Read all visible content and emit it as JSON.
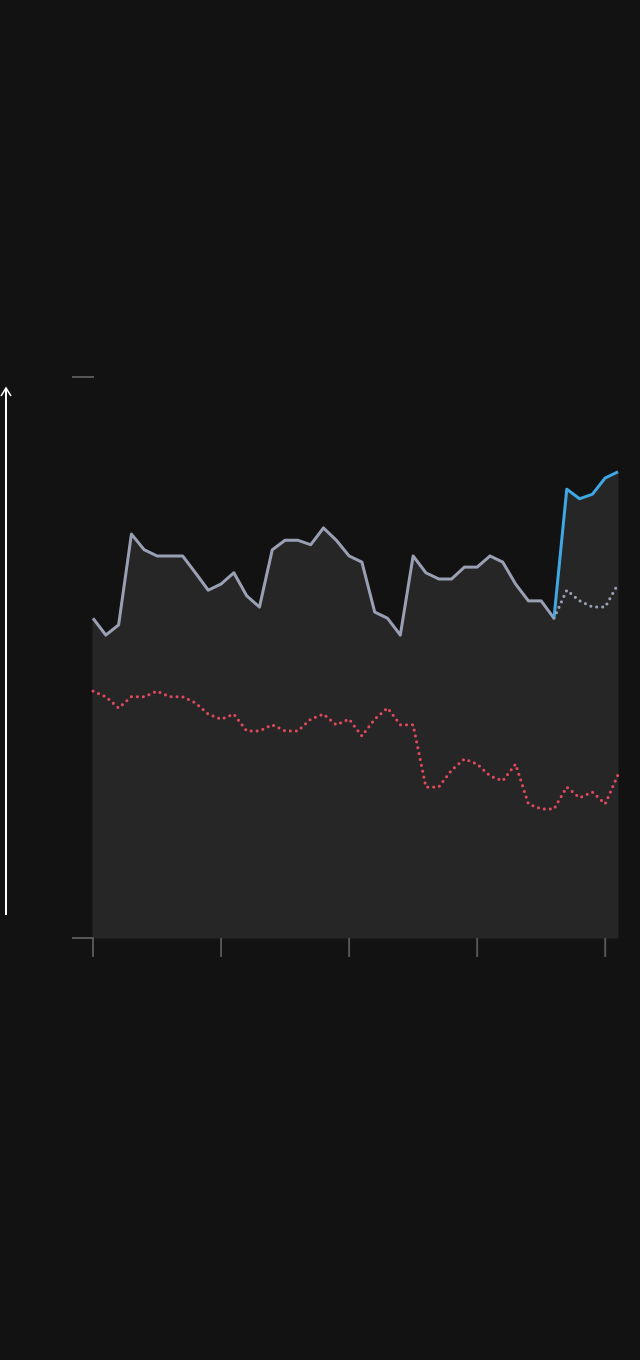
{
  "chart_data": {
    "type": "line",
    "x": [
      0,
      1,
      2,
      3,
      4,
      5,
      6,
      7,
      8,
      9,
      10,
      11,
      12,
      13,
      14,
      15,
      16,
      17,
      18,
      19,
      20,
      21,
      22,
      23,
      24,
      25,
      26,
      27,
      28,
      29,
      30,
      31,
      32,
      33,
      34,
      35,
      36,
      37,
      38,
      39,
      40,
      41
    ],
    "xlim": [
      0,
      41
    ],
    "xticks": [
      0,
      10,
      20,
      30,
      40
    ],
    "ylim": [
      0,
      100
    ],
    "yticks": [
      0,
      100
    ],
    "area_color": "#262626",
    "series": [
      {
        "color": "#9aa0b4",
        "dash": "solid",
        "area": true,
        "values": [
          57.0,
          54.0,
          55.8,
          72.0,
          69.2,
          68.1,
          68.1,
          68.1,
          65.1,
          62.0,
          63.1,
          65.1,
          61.0,
          59.0,
          69.2,
          70.9,
          70.9,
          70.1,
          73.1,
          70.9,
          68.1,
          67.0,
          58.1,
          57.0,
          54.0,
          68.1,
          65.1,
          64.0,
          64.0,
          66.1,
          66.1,
          68.1,
          67.0,
          63.1,
          60.1,
          60.1,
          57.0,
          null,
          null,
          null,
          null,
          null
        ]
      },
      {
        "color": "#3ea8e5",
        "dash": "solid",
        "area": true,
        "values": [
          null,
          null,
          null,
          null,
          null,
          null,
          null,
          null,
          null,
          null,
          null,
          null,
          null,
          null,
          null,
          null,
          null,
          null,
          null,
          null,
          null,
          null,
          null,
          null,
          null,
          null,
          null,
          null,
          null,
          null,
          null,
          null,
          null,
          null,
          null,
          null,
          57.0,
          80.0,
          78.3,
          79.1,
          82.0,
          83.1
        ]
      },
      {
        "color": "#9aa0b4",
        "dash": "dotted",
        "area": false,
        "values": [
          null,
          null,
          null,
          null,
          null,
          null,
          null,
          null,
          null,
          null,
          null,
          null,
          null,
          null,
          null,
          null,
          null,
          null,
          null,
          null,
          null,
          null,
          null,
          null,
          null,
          null,
          null,
          null,
          null,
          null,
          null,
          null,
          null,
          null,
          null,
          null,
          57.0,
          62.0,
          60.1,
          59.0,
          59.0,
          63.1
        ]
      },
      {
        "color": "#e0485c",
        "dash": "dotted",
        "area": false,
        "values": [
          44.0,
          43.0,
          41.0,
          43.0,
          43.0,
          44.0,
          43.0,
          43.0,
          41.9,
          39.9,
          39.0,
          39.9,
          36.9,
          36.9,
          38.0,
          36.9,
          36.9,
          39.0,
          39.9,
          38.0,
          39.0,
          36.0,
          39.0,
          41.0,
          38.0,
          38.0,
          26.9,
          26.9,
          29.9,
          31.9,
          31.0,
          28.9,
          28.0,
          31.0,
          23.9,
          23.0,
          23.0,
          26.9,
          25.0,
          26.0,
          23.9,
          29.1
        ]
      }
    ]
  }
}
